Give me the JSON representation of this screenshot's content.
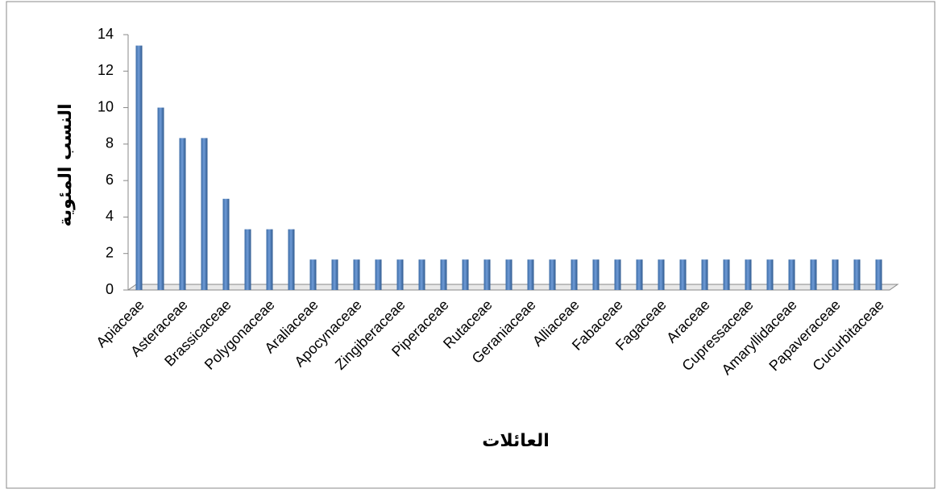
{
  "chart_data": {
    "type": "bar",
    "x_label": "العائلات",
    "y_label": "النسب المئوية",
    "categories": [
      "Apiaceae",
      null,
      "Asteraceae",
      null,
      "Brassicaceae",
      null,
      "Polygonaceae",
      null,
      "Araliaceae",
      null,
      "Apocynaceae",
      null,
      "Zingiberaceae",
      null,
      "Piperaceae",
      null,
      "Rutaceae",
      null,
      "Geraniaceae",
      null,
      "Alliaceae",
      null,
      "Fabaceae",
      null,
      "Fagaceae",
      null,
      "Araceae",
      null,
      "Cupressaceae",
      null,
      "Amaryllidaceae",
      null,
      "Papaveraceae",
      null,
      "Cucurbitaceae"
    ],
    "values": [
      13.4,
      10,
      8.33,
      8.33,
      5,
      3.33,
      3.33,
      3.33,
      1.67,
      1.67,
      1.67,
      1.67,
      1.67,
      1.67,
      1.67,
      1.67,
      1.67,
      1.67,
      1.67,
      1.67,
      1.67,
      1.67,
      1.67,
      1.67,
      1.67,
      1.67,
      1.67,
      1.67,
      1.67,
      1.67,
      1.67,
      1.67,
      1.67,
      1.67,
      1.67
    ],
    "color": "#4f81bd",
    "ylim": [
      0,
      14
    ],
    "yticks": [
      0,
      2,
      4,
      6,
      8,
      10,
      12,
      14
    ],
    "grid": false
  }
}
